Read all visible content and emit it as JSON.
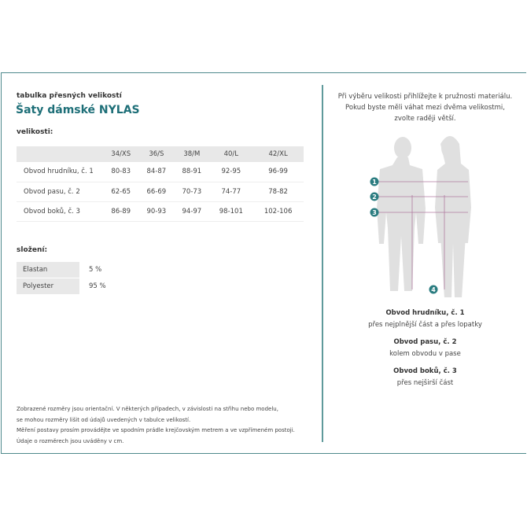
{
  "header": {
    "subtitle": "tabulka přesných velikostí",
    "title": "Šaty dámské NYLAS"
  },
  "sizes": {
    "label": "velikosti:",
    "columns": [
      "",
      "34/XS",
      "36/S",
      "38/M",
      "40/L",
      "42/XL"
    ],
    "rows": [
      [
        "Obvod hrudníku, č. 1",
        "80-83",
        "84-87",
        "88-91",
        "92-95",
        "96-99"
      ],
      [
        "Obvod pasu, č. 2",
        "62-65",
        "66-69",
        "70-73",
        "74-77",
        "78-82"
      ],
      [
        "Obvod boků, č. 3",
        "86-89",
        "90-93",
        "94-97",
        "98-101",
        "102-106"
      ]
    ]
  },
  "composition": {
    "label": "složení:",
    "items": [
      {
        "name": "Elastan",
        "value": "5 %"
      },
      {
        "name": "Polyester",
        "value": "95 %"
      }
    ]
  },
  "notes": [
    "Zobrazené rozměry jsou orientační. V některých případech, v závislosti na střihu nebo modelu,",
    "se mohou rozměry lišit od údajů uvedených v tabulce velikostí.",
    "Měření postavy prosím provádějte ve spodním prádle krejčovským metrem a ve vzpřímeném postoji.",
    "Údaje o rozměrech jsou uváděny v cm."
  ],
  "intro": [
    "Při výběru velikosti přihlížejte k pružnosti materiálu.",
    "Pokud byste měli váhat mezi dvěma velikostmi,",
    "zvolte raději větší."
  ],
  "markers": [
    "1",
    "2",
    "3",
    "4"
  ],
  "measures": [
    {
      "title": "Obvod hrudníku, č. 1",
      "desc": "přes nejplnější část a přes lopatky"
    },
    {
      "title": "Obvod pasu, č. 2",
      "desc": "kolem obvodu v pase"
    },
    {
      "title": "Obvod boků, č. 3",
      "desc": "přes nejširší část"
    }
  ],
  "colors": {
    "accent": "#1e6f78",
    "frame": "#4e8a8c",
    "marker": "#2a7c80",
    "silhouette": "#e0e0e0",
    "line": "#b07aa0"
  }
}
